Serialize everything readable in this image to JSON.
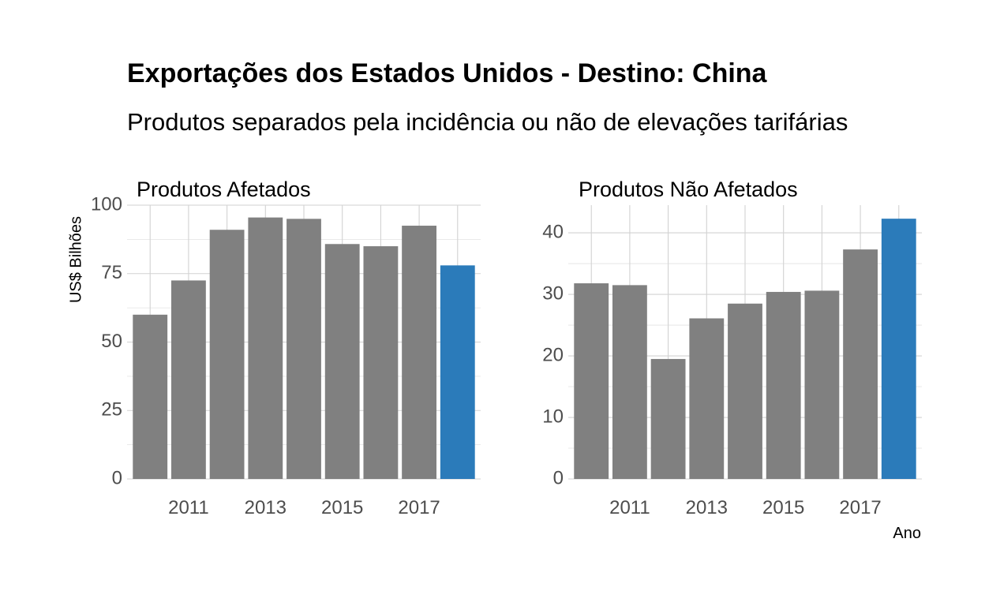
{
  "title": "Exportações dos Estados Unidos - Destino: China",
  "subtitle": "Produtos separados pela incidência ou não de elevações tarifárias",
  "chart_data": {
    "type": "bar",
    "title": "Exportações dos Estados Unidos - Destino: China",
    "subtitle": "Produtos separados pela incidência ou não de elevações tarifárias",
    "ylabel": "US$ Bilhões",
    "xlabel": "Ano",
    "grid": true,
    "colors": {
      "default": "#808080",
      "highlight": "#2b7bba"
    },
    "panels": [
      {
        "title": "Produtos Afetados",
        "categories": [
          2010,
          2011,
          2012,
          2013,
          2014,
          2015,
          2016,
          2017,
          2018
        ],
        "values": [
          60,
          72.5,
          91,
          95.5,
          95,
          85.8,
          85,
          92.5,
          78
        ],
        "highlight": [
          2018
        ],
        "ylim": [
          0,
          100
        ],
        "yticks": [
          0,
          25,
          50,
          75,
          100
        ],
        "xticks": [
          2011,
          2013,
          2015,
          2017
        ]
      },
      {
        "title": "Produtos Não Afetados",
        "categories": [
          2010,
          2011,
          2012,
          2013,
          2014,
          2015,
          2016,
          2017,
          2018
        ],
        "values": [
          31.8,
          31.5,
          19.5,
          26.1,
          28.5,
          30.4,
          30.6,
          37.3,
          42.3
        ],
        "highlight": [
          2018
        ],
        "ylim": [
          0,
          44.5
        ],
        "yticks": [
          0,
          10,
          20,
          30,
          40
        ],
        "xticks": [
          2011,
          2013,
          2015,
          2017
        ]
      }
    ]
  }
}
